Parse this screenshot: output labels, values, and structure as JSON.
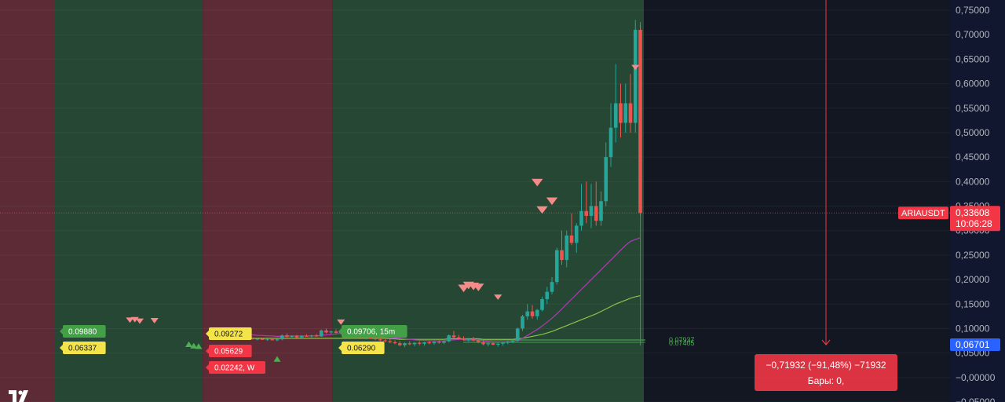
{
  "colors": {
    "background": "#131722",
    "zone_red": "#5d2b35",
    "zone_green": "#254733",
    "up": "#26a69a",
    "down": "#ef5350",
    "ma_purple": "#b03bb8",
    "ma_green": "#8bc34a",
    "axis_bg": "#10172e",
    "price_tag": "#f23645",
    "current_tag": "#2962ff",
    "yellow_tag": "#f5e34a",
    "green_tag": "#43a047",
    "marker_sell": "#f48a8a",
    "marker_buy": "#4caf50"
  },
  "logo": {
    "icon": "tradingview-logo-icon"
  },
  "chart_data": {
    "type": "candlestick",
    "symbol_label": "ARIAUSDT",
    "last_price": "0,33608",
    "countdown": "10:06:28",
    "current_level": "0,06701",
    "ylim": [
      -0.02,
      0.76
    ],
    "y_ticks": [
      "0,75000",
      "0,70000",
      "0,65000",
      "0,60000",
      "0,55000",
      "0,50000",
      "0,45000",
      "0,40000",
      "0,35000",
      "0,30000",
      "0,25000",
      "0,20000",
      "0,15000",
      "0,10000",
      "0,05000",
      "−0,00000",
      "−0,05000"
    ],
    "y_tick_values": [
      0.75,
      0.7,
      0.65,
      0.6,
      0.55,
      0.5,
      0.45,
      0.4,
      0.35,
      0.3,
      0.25,
      0.2,
      0.15,
      0.1,
      0.05,
      0.0,
      -0.05
    ],
    "candles": [
      [
        0.08,
        0.082,
        0.078,
        0.079
      ],
      [
        0.079,
        0.081,
        0.077,
        0.08
      ],
      [
        0.08,
        0.082,
        0.078,
        0.078
      ],
      [
        0.078,
        0.08,
        0.076,
        0.079
      ],
      [
        0.079,
        0.081,
        0.077,
        0.077
      ],
      [
        0.077,
        0.079,
        0.075,
        0.078
      ],
      [
        0.078,
        0.08,
        0.076,
        0.076
      ],
      [
        0.076,
        0.079,
        0.074,
        0.078
      ],
      [
        0.078,
        0.088,
        0.076,
        0.086
      ],
      [
        0.086,
        0.09,
        0.082,
        0.083
      ],
      [
        0.083,
        0.086,
        0.079,
        0.085
      ],
      [
        0.085,
        0.087,
        0.081,
        0.082
      ],
      [
        0.082,
        0.086,
        0.08,
        0.085
      ],
      [
        0.085,
        0.088,
        0.083,
        0.084
      ],
      [
        0.084,
        0.087,
        0.082,
        0.086
      ],
      [
        0.086,
        0.089,
        0.083,
        0.084
      ],
      [
        0.084,
        0.098,
        0.083,
        0.096
      ],
      [
        0.096,
        0.1,
        0.09,
        0.092
      ],
      [
        0.092,
        0.096,
        0.089,
        0.094
      ],
      [
        0.094,
        0.098,
        0.09,
        0.091
      ],
      [
        0.091,
        0.096,
        0.088,
        0.093
      ],
      [
        0.093,
        0.096,
        0.089,
        0.09
      ],
      [
        0.09,
        0.094,
        0.085,
        0.087
      ],
      [
        0.087,
        0.091,
        0.082,
        0.084
      ],
      [
        0.084,
        0.088,
        0.08,
        0.081
      ],
      [
        0.081,
        0.085,
        0.078,
        0.083
      ],
      [
        0.083,
        0.086,
        0.079,
        0.08
      ],
      [
        0.08,
        0.084,
        0.076,
        0.078
      ],
      [
        0.078,
        0.082,
        0.074,
        0.076
      ],
      [
        0.076,
        0.08,
        0.072,
        0.074
      ],
      [
        0.074,
        0.078,
        0.07,
        0.072
      ],
      [
        0.072,
        0.076,
        0.068,
        0.07
      ],
      [
        0.07,
        0.074,
        0.064,
        0.066
      ],
      [
        0.066,
        0.072,
        0.062,
        0.07
      ],
      [
        0.07,
        0.074,
        0.066,
        0.068
      ],
      [
        0.068,
        0.072,
        0.064,
        0.071
      ],
      [
        0.071,
        0.074,
        0.066,
        0.069
      ],
      [
        0.069,
        0.073,
        0.065,
        0.072
      ],
      [
        0.072,
        0.075,
        0.068,
        0.07
      ],
      [
        0.07,
        0.074,
        0.067,
        0.073
      ],
      [
        0.073,
        0.076,
        0.069,
        0.071
      ],
      [
        0.071,
        0.075,
        0.068,
        0.074
      ],
      [
        0.074,
        0.088,
        0.072,
        0.086
      ],
      [
        0.086,
        0.095,
        0.08,
        0.082
      ],
      [
        0.082,
        0.087,
        0.077,
        0.08
      ],
      [
        0.08,
        0.084,
        0.075,
        0.077
      ],
      [
        0.077,
        0.081,
        0.073,
        0.079
      ],
      [
        0.079,
        0.083,
        0.074,
        0.076
      ],
      [
        0.076,
        0.08,
        0.07,
        0.072
      ],
      [
        0.072,
        0.076,
        0.066,
        0.068
      ],
      [
        0.068,
        0.072,
        0.064,
        0.07
      ],
      [
        0.07,
        0.073,
        0.066,
        0.067
      ],
      [
        0.067,
        0.071,
        0.063,
        0.069
      ],
      [
        0.069,
        0.073,
        0.065,
        0.071
      ],
      [
        0.071,
        0.075,
        0.068,
        0.073
      ],
      [
        0.073,
        0.077,
        0.07,
        0.075
      ],
      [
        0.075,
        0.102,
        0.073,
        0.1
      ],
      [
        0.1,
        0.128,
        0.095,
        0.125
      ],
      [
        0.125,
        0.15,
        0.118,
        0.135
      ],
      [
        0.135,
        0.148,
        0.12,
        0.125
      ],
      [
        0.125,
        0.14,
        0.118,
        0.138
      ],
      [
        0.138,
        0.165,
        0.135,
        0.16
      ],
      [
        0.16,
        0.185,
        0.15,
        0.175
      ],
      [
        0.175,
        0.205,
        0.17,
        0.195
      ],
      [
        0.195,
        0.265,
        0.19,
        0.26
      ],
      [
        0.26,
        0.3,
        0.23,
        0.24
      ],
      [
        0.24,
        0.3,
        0.225,
        0.29
      ],
      [
        0.29,
        0.335,
        0.27,
        0.275
      ],
      [
        0.275,
        0.315,
        0.255,
        0.31
      ],
      [
        0.31,
        0.395,
        0.3,
        0.34
      ],
      [
        0.34,
        0.4,
        0.315,
        0.33
      ],
      [
        0.33,
        0.395,
        0.305,
        0.35
      ],
      [
        0.35,
        0.4,
        0.31,
        0.32
      ],
      [
        0.32,
        0.38,
        0.31,
        0.36
      ],
      [
        0.36,
        0.48,
        0.35,
        0.45
      ],
      [
        0.45,
        0.56,
        0.43,
        0.51
      ],
      [
        0.51,
        0.64,
        0.48,
        0.56
      ],
      [
        0.56,
        0.6,
        0.49,
        0.52
      ],
      [
        0.52,
        0.6,
        0.5,
        0.56
      ],
      [
        0.56,
        0.62,
        0.5,
        0.52
      ],
      [
        0.52,
        0.73,
        0.5,
        0.71
      ],
      [
        0.71,
        0.72,
        0.33,
        0.336
      ]
    ],
    "ma_slow": [
      0.08,
      0.08,
      0.08,
      0.08,
      0.08,
      0.08,
      0.08,
      0.08,
      0.08,
      0.08,
      0.08,
      0.08,
      0.08,
      0.08,
      0.08,
      0.08,
      0.08,
      0.08,
      0.08,
      0.08,
      0.08,
      0.08,
      0.08,
      0.08,
      0.08,
      0.08,
      0.08,
      0.08,
      0.08,
      0.08,
      0.079,
      0.079,
      0.078,
      0.078,
      0.078,
      0.078,
      0.078,
      0.078,
      0.078,
      0.078,
      0.078,
      0.078,
      0.079,
      0.079,
      0.079,
      0.079,
      0.079,
      0.079,
      0.079,
      0.078,
      0.078,
      0.078,
      0.078,
      0.078,
      0.078,
      0.078,
      0.079,
      0.08,
      0.082,
      0.084,
      0.086,
      0.088,
      0.091,
      0.094,
      0.098,
      0.102,
      0.106,
      0.11,
      0.114,
      0.118,
      0.122,
      0.126,
      0.13,
      0.135,
      0.14,
      0.145,
      0.15,
      0.154,
      0.158,
      0.162,
      0.165,
      0.167
    ],
    "ma_fast": [
      0.088,
      0.087,
      0.087,
      0.086,
      0.086,
      0.085,
      0.085,
      0.084,
      0.084,
      0.085,
      0.085,
      0.085,
      0.085,
      0.085,
      0.085,
      0.085,
      0.086,
      0.087,
      0.088,
      0.089,
      0.09,
      0.09,
      0.09,
      0.089,
      0.088,
      0.087,
      0.086,
      0.085,
      0.084,
      0.083,
      0.082,
      0.081,
      0.08,
      0.079,
      0.078,
      0.077,
      0.076,
      0.076,
      0.075,
      0.075,
      0.075,
      0.075,
      0.076,
      0.077,
      0.078,
      0.078,
      0.078,
      0.077,
      0.076,
      0.075,
      0.074,
      0.073,
      0.073,
      0.073,
      0.073,
      0.074,
      0.076,
      0.08,
      0.086,
      0.092,
      0.098,
      0.105,
      0.113,
      0.121,
      0.13,
      0.14,
      0.15,
      0.16,
      0.17,
      0.18,
      0.19,
      0.2,
      0.21,
      0.22,
      0.23,
      0.24,
      0.25,
      0.26,
      0.27,
      0.278,
      0.282,
      0.285
    ],
    "zones": [
      {
        "color": "red",
        "from": -0.5,
        "to": 11.2
      },
      {
        "color": "green",
        "from": 11.2,
        "to": 41.3
      },
      {
        "color": "red",
        "from": 41.3,
        "to": 67.8
      },
      {
        "color": "green",
        "from": 67.8,
        "to": 131.2
      }
    ],
    "sell_markers": [
      [
        26,
        0.117,
        0.85
      ],
      [
        27,
        0.118,
        0.85
      ],
      [
        28,
        0.115,
        0.85
      ],
      [
        31,
        0.116,
        0.85
      ],
      [
        69,
        0.113,
        0.85
      ],
      [
        94,
        0.182,
        1.2
      ],
      [
        95,
        0.188,
        1.2
      ],
      [
        96,
        0.186,
        1.2
      ],
      [
        97,
        0.184,
        1.2
      ],
      [
        101,
        0.164,
        0.85
      ],
      [
        109,
        0.398,
        1.2
      ],
      [
        110,
        0.342,
        1.2
      ],
      [
        112,
        0.36,
        1.2
      ],
      [
        129,
        0.633,
        0.85
      ]
    ],
    "buy_markers": [
      [
        38,
        0.068,
        0.9
      ],
      [
        39,
        0.065,
        0.9
      ],
      [
        40,
        0.064,
        0.9
      ],
      [
        56,
        0.038,
        0.9
      ]
    ],
    "tags": [
      {
        "text": "0.09880",
        "style": "green",
        "x": 80,
        "y": 422
      },
      {
        "text": "0.06337",
        "style": "yellow",
        "x": 80,
        "y": 443
      },
      {
        "text": "0.09272",
        "style": "yellow",
        "x": 266,
        "y": 425
      },
      {
        "text": "0.05629",
        "style": "red",
        "x": 266,
        "y": 447
      },
      {
        "text": "0.02242, W",
        "style": "red",
        "x": 266,
        "y": 468
      },
      {
        "text": "0.09706, 15m",
        "style": "green",
        "x": 435,
        "y": 422
      },
      {
        "text": "0.06290",
        "style": "yellow",
        "x": 435,
        "y": 443
      }
    ],
    "small_labels": [
      "0.07937",
      "0.07405"
    ],
    "range_tool": {
      "line1": "−0,71932 (−91,48%) −71932",
      "line2": "Бары: 0,"
    }
  }
}
